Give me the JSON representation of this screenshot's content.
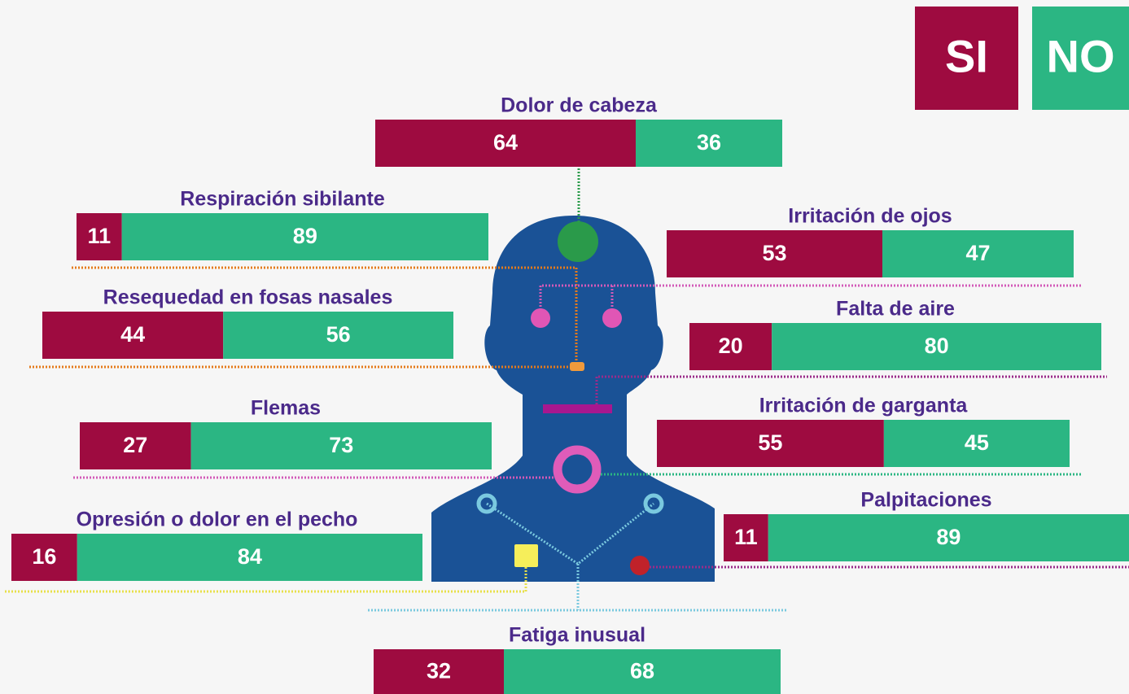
{
  "chart_data": {
    "type": "stacked-bar",
    "categories": [
      "Dolor de cabeza",
      "Respiración sibilante",
      "Irritación de ojos",
      "Resequedad en fosas nasales",
      "Falta de aire",
      "Flemas",
      "Irritación de garganta",
      "Palpitaciones",
      "Opresión o dolor en el pecho",
      "Fatiga inusual"
    ],
    "series": [
      {
        "name": "SI",
        "color": "#9e0b40",
        "values": [
          64,
          11,
          53,
          44,
          20,
          27,
          55,
          11,
          16,
          32
        ]
      },
      {
        "name": "NO",
        "color": "#2bb683",
        "values": [
          36,
          89,
          47,
          56,
          80,
          73,
          45,
          89,
          84,
          68
        ]
      }
    ]
  }
}
